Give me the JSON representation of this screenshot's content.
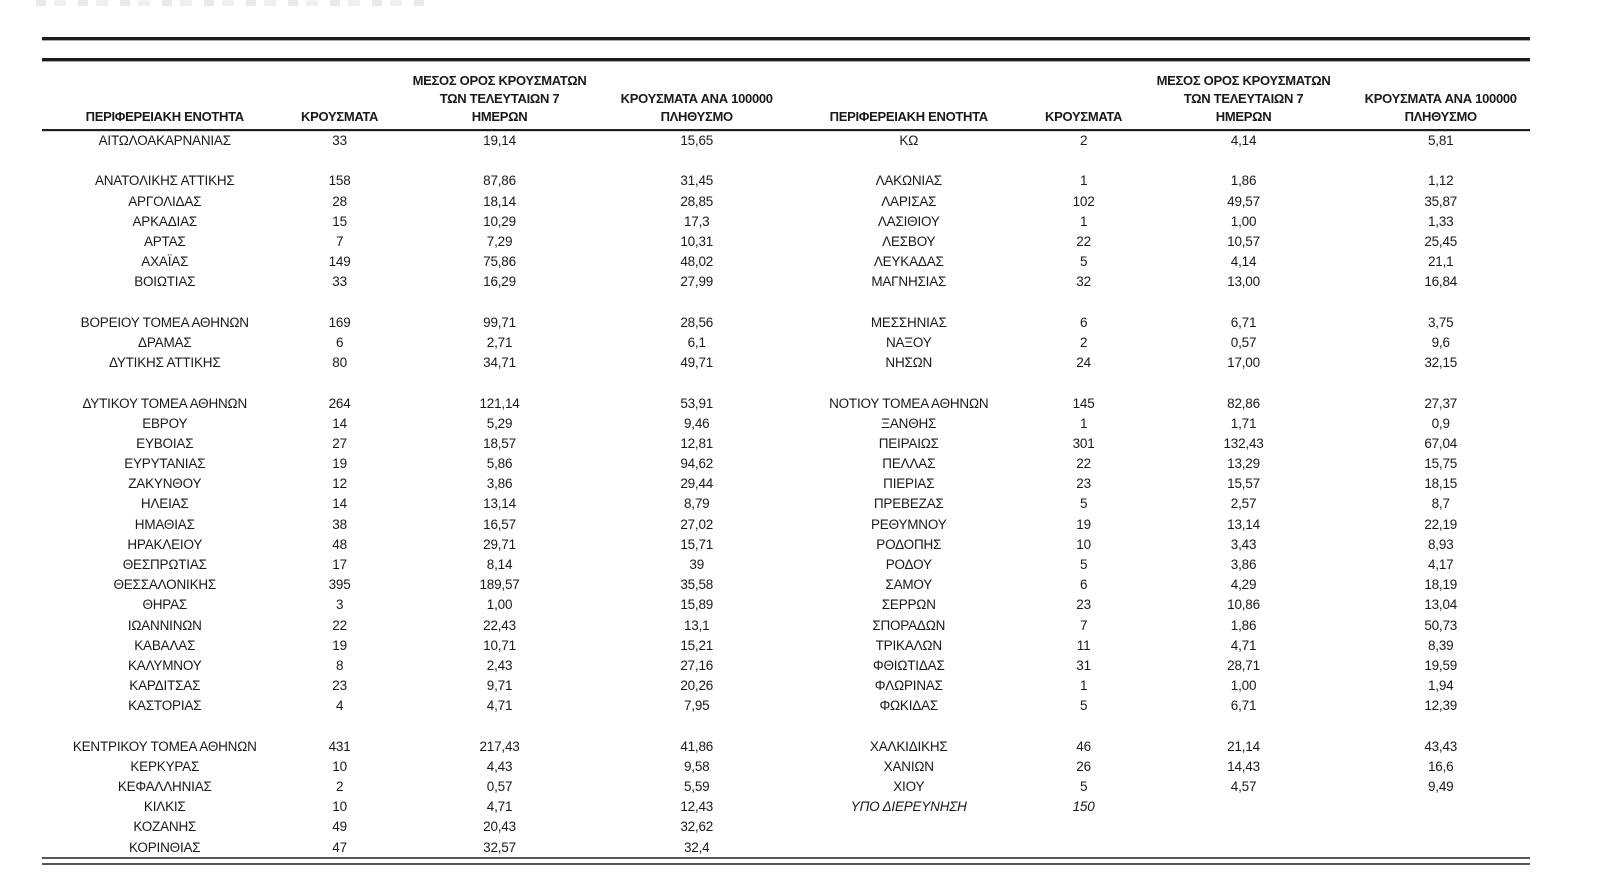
{
  "document": {
    "columns": {
      "region": "ΠΕΡΙΦΕΡΕΙΑΚΗ ΕΝΟΤΗΤΑ",
      "cases": "ΚΡΟΥΣΜΑΤΑ",
      "avg7_line1": "ΜΕΣΟΣ ΟΡΟΣ ΚΡΟΥΣΜΑΤΩΝ",
      "avg7_line2": "ΤΩΝ ΤΕΛΕΥΤΑΙΩΝ 7",
      "avg7_line3": "ΗΜΕΡΩΝ",
      "per100k_line1": "ΚΡΟΥΣΜΑΤΑ ΑΝΑ 100000",
      "per100k_line2": "ΠΛΗΘΥΣΜΟ"
    },
    "left_rows": [
      [
        "ΑΙΤΩΛΟΑΚΑΡΝΑΝΙΑΣ",
        "33",
        "19,14",
        "15,65"
      ],
      [],
      [
        "ΑΝΑΤΟΛΙΚΗΣ ΑΤΤΙΚΗΣ",
        "158",
        "87,86",
        "31,45"
      ],
      [
        "ΑΡΓΟΛΙΔΑΣ",
        "28",
        "18,14",
        "28,85"
      ],
      [
        "ΑΡΚΑΔΙΑΣ",
        "15",
        "10,29",
        "17,3"
      ],
      [
        "ΑΡΤΑΣ",
        "7",
        "7,29",
        "10,31"
      ],
      [
        "ΑΧΑΪΑΣ",
        "149",
        "75,86",
        "48,02"
      ],
      [
        "ΒΟΙΩΤΙΑΣ",
        "33",
        "16,29",
        "27,99"
      ],
      [],
      [
        "ΒΟΡΕΙΟΥ ΤΟΜΕΑ ΑΘΗΝΩΝ",
        "169",
        "99,71",
        "28,56"
      ],
      [
        "ΔΡΑΜΑΣ",
        "6",
        "2,71",
        "6,1"
      ],
      [
        "ΔΥΤΙΚΗΣ ΑΤΤΙΚΗΣ",
        "80",
        "34,71",
        "49,71"
      ],
      [],
      [
        "ΔΥΤΙΚΟΥ ΤΟΜΕΑ ΑΘΗΝΩΝ",
        "264",
        "121,14",
        "53,91"
      ],
      [
        "ΕΒΡΟΥ",
        "14",
        "5,29",
        "9,46"
      ],
      [
        "ΕΥΒΟΙΑΣ",
        "27",
        "18,57",
        "12,81"
      ],
      [
        "ΕΥΡΥΤΑΝΙΑΣ",
        "19",
        "5,86",
        "94,62"
      ],
      [
        "ΖΑΚΥΝΘΟΥ",
        "12",
        "3,86",
        "29,44"
      ],
      [
        "ΗΛΕΙΑΣ",
        "14",
        "13,14",
        "8,79"
      ],
      [
        "ΗΜΑΘΙΑΣ",
        "38",
        "16,57",
        "27,02"
      ],
      [
        "ΗΡΑΚΛΕΙΟΥ",
        "48",
        "29,71",
        "15,71"
      ],
      [
        "ΘΕΣΠΡΩΤΙΑΣ",
        "17",
        "8,14",
        "39"
      ],
      [
        "ΘΕΣΣΑΛΟΝΙΚΗΣ",
        "395",
        "189,57",
        "35,58"
      ],
      [
        "ΘΗΡΑΣ",
        "3",
        "1,00",
        "15,89"
      ],
      [
        "ΙΩΑΝΝΙΝΩΝ",
        "22",
        "22,43",
        "13,1"
      ],
      [
        "ΚΑΒΑΛΑΣ",
        "19",
        "10,71",
        "15,21"
      ],
      [
        "ΚΑΛΥΜΝΟΥ",
        "8",
        "2,43",
        "27,16"
      ],
      [
        "ΚΑΡΔΙΤΣΑΣ",
        "23",
        "9,71",
        "20,26"
      ],
      [
        "ΚΑΣΤΟΡΙΑΣ",
        "4",
        "4,71",
        "7,95"
      ],
      [],
      [
        "ΚΕΝΤΡΙΚΟΥ ΤΟΜΕΑ ΑΘΗΝΩΝ",
        "431",
        "217,43",
        "41,86"
      ],
      [
        "ΚΕΡΚΥΡΑΣ",
        "10",
        "4,43",
        "9,58"
      ],
      [
        "ΚΕΦΑΛΛΗΝΙΑΣ",
        "2",
        "0,57",
        "5,59"
      ],
      [
        "ΚΙΛΚΙΣ",
        "10",
        "4,71",
        "12,43"
      ],
      [
        "ΚΟΖΑΝΗΣ",
        "49",
        "20,43",
        "32,62"
      ],
      [
        "ΚΟΡΙΝΘΙΑΣ",
        "47",
        "32,57",
        "32,4"
      ]
    ],
    "right_rows": [
      [
        "ΚΩ",
        "2",
        "4,14",
        "5,81"
      ],
      [],
      [
        "ΛΑΚΩΝΙΑΣ",
        "1",
        "1,86",
        "1,12"
      ],
      [
        "ΛΑΡΙΣΑΣ",
        "102",
        "49,57",
        "35,87"
      ],
      [
        "ΛΑΣΙΘΙΟΥ",
        "1",
        "1,00",
        "1,33"
      ],
      [
        "ΛΕΣΒΟΥ",
        "22",
        "10,57",
        "25,45"
      ],
      [
        "ΛΕΥΚΑΔΑΣ",
        "5",
        "4,14",
        "21,1"
      ],
      [
        "ΜΑΓΝΗΣΙΑΣ",
        "32",
        "13,00",
        "16,84"
      ],
      [],
      [
        "ΜΕΣΣΗΝΙΑΣ",
        "6",
        "6,71",
        "3,75"
      ],
      [
        "ΝΑΞΟΥ",
        "2",
        "0,57",
        "9,6"
      ],
      [
        "ΝΗΣΩΝ",
        "24",
        "17,00",
        "32,15"
      ],
      [],
      [
        "ΝΟΤΙΟΥ ΤΟΜΕΑ ΑΘΗΝΩΝ",
        "145",
        "82,86",
        "27,37"
      ],
      [
        "ΞΑΝΘΗΣ",
        "1",
        "1,71",
        "0,9"
      ],
      [
        "ΠΕΙΡΑΙΩΣ",
        "301",
        "132,43",
        "67,04"
      ],
      [
        "ΠΕΛΛΑΣ",
        "22",
        "13,29",
        "15,75"
      ],
      [
        "ΠΙΕΡΙΑΣ",
        "23",
        "15,57",
        "18,15"
      ],
      [
        "ΠΡΕΒΕΖΑΣ",
        "5",
        "2,57",
        "8,7"
      ],
      [
        "ΡΕΘΥΜΝΟΥ",
        "19",
        "13,14",
        "22,19"
      ],
      [
        "ΡΟΔΟΠΗΣ",
        "10",
        "3,43",
        "8,93"
      ],
      [
        "ΡΟΔΟΥ",
        "5",
        "3,86",
        "4,17"
      ],
      [
        "ΣΑΜΟΥ",
        "6",
        "4,29",
        "18,19"
      ],
      [
        "ΣΕΡΡΩΝ",
        "23",
        "10,86",
        "13,04"
      ],
      [
        "ΣΠΟΡΑΔΩΝ",
        "7",
        "1,86",
        "50,73"
      ],
      [
        "ΤΡΙΚΑΛΩΝ",
        "11",
        "4,71",
        "8,39"
      ],
      [
        "ΦΘΙΩΤΙΔΑΣ",
        "31",
        "28,71",
        "19,59"
      ],
      [
        "ΦΛΩΡΙΝΑΣ",
        "1",
        "1,00",
        "1,94"
      ],
      [
        "ΦΩΚΙΔΑΣ",
        "5",
        "6,71",
        "12,39"
      ],
      [],
      [
        "ΧΑΛΚΙΔΙΚΗΣ",
        "46",
        "21,14",
        "43,43"
      ],
      [
        "ΧΑΝΙΩΝ",
        "26",
        "14,43",
        "16,6"
      ],
      [
        "ΧΙΟΥ",
        "5",
        "4,57",
        "9,49"
      ],
      {
        "cells": [
          "ΥΠΟ ΔΙΕΡΕΥΝΗΣΗ",
          "150",
          "",
          ""
        ],
        "italic": true
      },
      [],
      []
    ]
  }
}
